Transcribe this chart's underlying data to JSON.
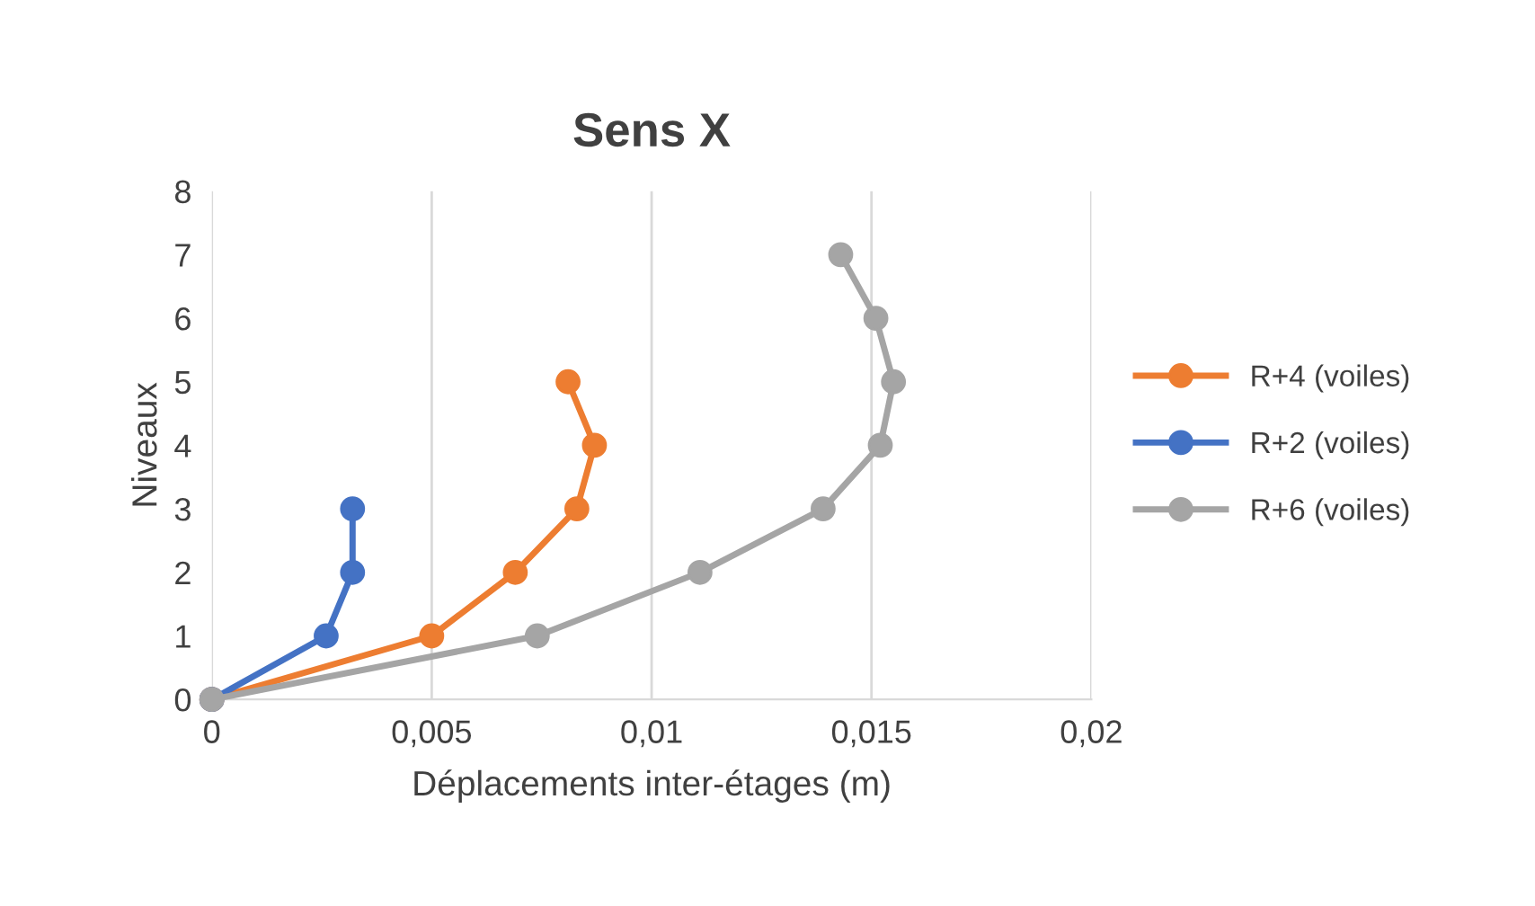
{
  "chart_data": {
    "type": "line",
    "title": "Sens X",
    "xlabel": "Déplacements inter-étages (m)",
    "ylabel": "Niveaux",
    "xlim": [
      0,
      0.02
    ],
    "xticks": [
      0,
      {
        "value": 0.005,
        "label": "0,005"
      },
      {
        "value": 0.01,
        "label": "0,01"
      },
      {
        "value": 0.015,
        "label": "0,015"
      },
      {
        "value": 0.02,
        "label": "0,02"
      }
    ],
    "ylim": [
      0,
      8
    ],
    "yticks": [
      0,
      1,
      2,
      3,
      4,
      5,
      6,
      7,
      8
    ],
    "grid": "x",
    "legend": "right",
    "marker": "circle",
    "line_style": "solid",
    "series": [
      {
        "name": "R+4 (voiles)",
        "color": "#ed7d31",
        "x": [
          0,
          0.005,
          0.0069,
          0.0083,
          0.0087,
          0.0081
        ],
        "values": [
          0,
          1,
          2,
          3,
          4,
          5
        ]
      },
      {
        "name": "R+2 (voiles)",
        "color": "#4472c4",
        "x": [
          0,
          0.0026,
          0.0032,
          0.0032
        ],
        "values": [
          0,
          1,
          2,
          3
        ]
      },
      {
        "name": "R+6 (voiles)",
        "color": "#a5a5a5",
        "x": [
          0,
          0.0074,
          0.0111,
          0.0139,
          0.0152,
          0.0155,
          0.0151,
          0.0143
        ],
        "values": [
          0,
          1,
          2,
          3,
          4,
          5,
          6,
          7
        ]
      }
    ]
  }
}
